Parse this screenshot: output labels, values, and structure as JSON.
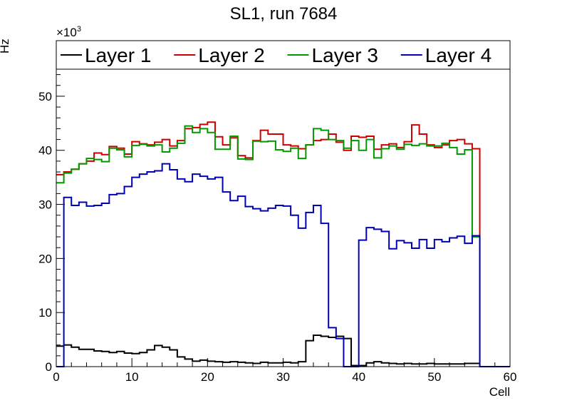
{
  "chart_data": {
    "type": "line",
    "title": "SL1, run 7684",
    "xlabel": "Cell",
    "ylabel": "Hz",
    "y_multiplier_label": "×10",
    "y_multiplier_exponent": "3",
    "xlim": [
      0,
      60
    ],
    "ylim": [
      0,
      55
    ],
    "x_ticks": [
      "0",
      "10",
      "20",
      "30",
      "40",
      "50",
      "60"
    ],
    "y_ticks": [
      "0",
      "10",
      "20",
      "30",
      "40",
      "50"
    ],
    "bins": [
      0,
      1,
      2,
      3,
      4,
      5,
      6,
      7,
      8,
      9,
      10,
      11,
      12,
      13,
      14,
      15,
      16,
      17,
      18,
      19,
      20,
      21,
      22,
      23,
      24,
      25,
      26,
      27,
      28,
      29,
      30,
      31,
      32,
      33,
      34,
      35,
      36,
      37,
      38,
      39,
      40,
      41,
      42,
      43,
      44,
      45,
      46,
      47,
      48,
      49,
      50,
      51,
      52,
      53,
      54,
      55,
      56,
      57,
      58,
      59
    ],
    "legend_position": "top",
    "series": [
      {
        "name": "Layer 1",
        "color": "#000000",
        "values": [
          3.8,
          4.0,
          3.6,
          3.2,
          3.2,
          2.9,
          2.8,
          2.6,
          2.8,
          2.5,
          2.4,
          2.6,
          3.1,
          3.9,
          3.6,
          3.1,
          1.8,
          1.4,
          1.0,
          1.2,
          1.0,
          0.9,
          0.8,
          0.9,
          0.8,
          0.7,
          0.6,
          0.8,
          0.7,
          0.7,
          0.8,
          0.7,
          0.9,
          4.8,
          5.8,
          5.6,
          5.4,
          5.6,
          5.2,
          0.2,
          0.2,
          0.7,
          0.9,
          0.7,
          0.6,
          0.5,
          0.6,
          0.5,
          0.5,
          0.6,
          0.5,
          0.5,
          0.5,
          0.5,
          0.6,
          0.6,
          0,
          0,
          0,
          0
        ]
      },
      {
        "name": "Layer 2",
        "color": "#cc0000",
        "values": [
          35.5,
          36.0,
          36.5,
          37.5,
          38.0,
          39.5,
          39.2,
          40.7,
          40.4,
          39.3,
          41.6,
          41.2,
          41.0,
          41.5,
          42.0,
          40.8,
          41.8,
          44.0,
          44.2,
          44.8,
          45.2,
          42.5,
          41.0,
          42.3,
          39.0,
          38.6,
          41.8,
          43.7,
          43.0,
          43.0,
          41.0,
          40.8,
          40.3,
          41.0,
          41.8,
          42.0,
          43.0,
          41.5,
          40.0,
          42.6,
          42.4,
          42.6,
          40.2,
          41.0,
          41.2,
          40.5,
          41.6,
          44.7,
          43.0,
          41.0,
          40.5,
          41.0,
          41.8,
          42.0,
          41.2,
          40.3,
          0,
          0,
          0,
          0
        ]
      },
      {
        "name": "Layer 3",
        "color": "#009900",
        "values": [
          34.0,
          35.8,
          36.5,
          37.5,
          38.5,
          38.3,
          37.9,
          40.4,
          40.1,
          38.8,
          40.9,
          41.1,
          40.8,
          41.0,
          39.7,
          40.4,
          41.3,
          44.5,
          43.3,
          44.0,
          43.3,
          40.2,
          40.2,
          42.6,
          38.4,
          38.3,
          41.7,
          41.6,
          41.7,
          40.1,
          39.8,
          40.4,
          38.5,
          41.0,
          44.0,
          43.7,
          42.0,
          41.8,
          40.4,
          41.8,
          40.0,
          42.0,
          38.6,
          40.3,
          40.8,
          40.2,
          41.1,
          40.9,
          41.2,
          40.8,
          40.8,
          41.3,
          40.5,
          39.3,
          40.1,
          24.0,
          0,
          0,
          0,
          0
        ]
      },
      {
        "name": "Layer 4",
        "color": "#0000b3",
        "values": [
          0,
          31.3,
          29.8,
          30.4,
          29.7,
          29.8,
          30.2,
          31.8,
          32.0,
          33.3,
          35.0,
          35.6,
          36.0,
          36.2,
          37.5,
          36.4,
          34.7,
          34.2,
          35.6,
          35.2,
          34.7,
          35.0,
          32.3,
          30.7,
          31.5,
          29.6,
          29.2,
          28.8,
          29.3,
          29.8,
          29.7,
          28.0,
          25.6,
          28.5,
          29.8,
          26.5,
          7.2,
          5.2,
          0,
          0,
          23.4,
          25.7,
          25.4,
          25.0,
          21.8,
          23.3,
          22.9,
          21.9,
          23.5,
          21.9,
          23.5,
          23.1,
          23.8,
          24.1,
          22.8,
          24.2,
          0,
          0,
          0,
          0
        ]
      }
    ]
  }
}
